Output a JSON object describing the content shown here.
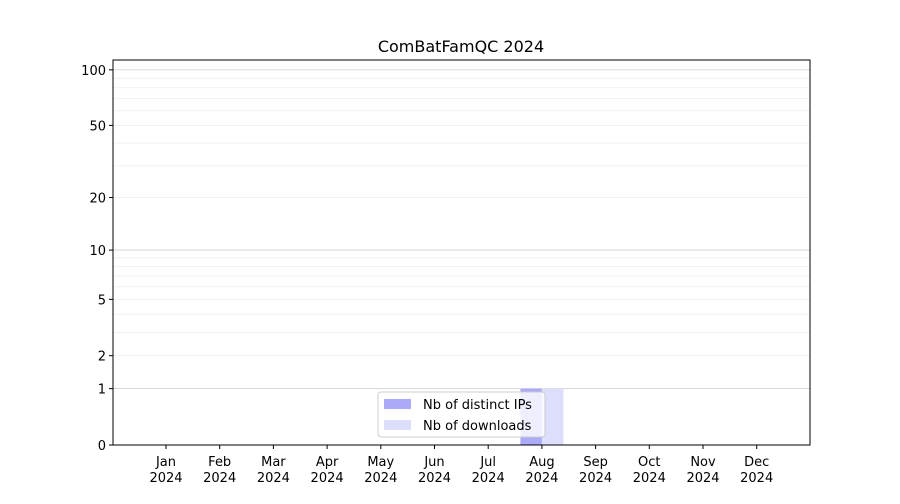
{
  "chart_data": {
    "type": "bar",
    "title": "ComBatFamQC 2024",
    "xlabel": "",
    "ylabel": "",
    "yscale": "log(1+y)",
    "ylim": [
      0,
      113
    ],
    "grid": true,
    "legend_position": "bottom-center",
    "categories": [
      "Jan\n2024",
      "Feb\n2024",
      "Mar\n2024",
      "Apr\n2024",
      "May\n2024",
      "Jun\n2024",
      "Jul\n2024",
      "Aug\n2024",
      "Sep\n2024",
      "Oct\n2024",
      "Nov\n2024",
      "Dec\n2024"
    ],
    "yticks": [
      0,
      1,
      2,
      5,
      10,
      20,
      50,
      100
    ],
    "ytick_labels": [
      "0",
      "1",
      "2",
      "5",
      "10",
      "20",
      "50",
      "100"
    ],
    "series": [
      {
        "name": "Nb of distinct IPs",
        "color": "#aaaaf8",
        "values": [
          0,
          0,
          0,
          0,
          0,
          0,
          0,
          1,
          0,
          0,
          0,
          0
        ]
      },
      {
        "name": "Nb of downloads",
        "color": "#ddddfc",
        "values": [
          0,
          0,
          0,
          0,
          0,
          0,
          0,
          1,
          0,
          0,
          0,
          0
        ]
      }
    ]
  }
}
